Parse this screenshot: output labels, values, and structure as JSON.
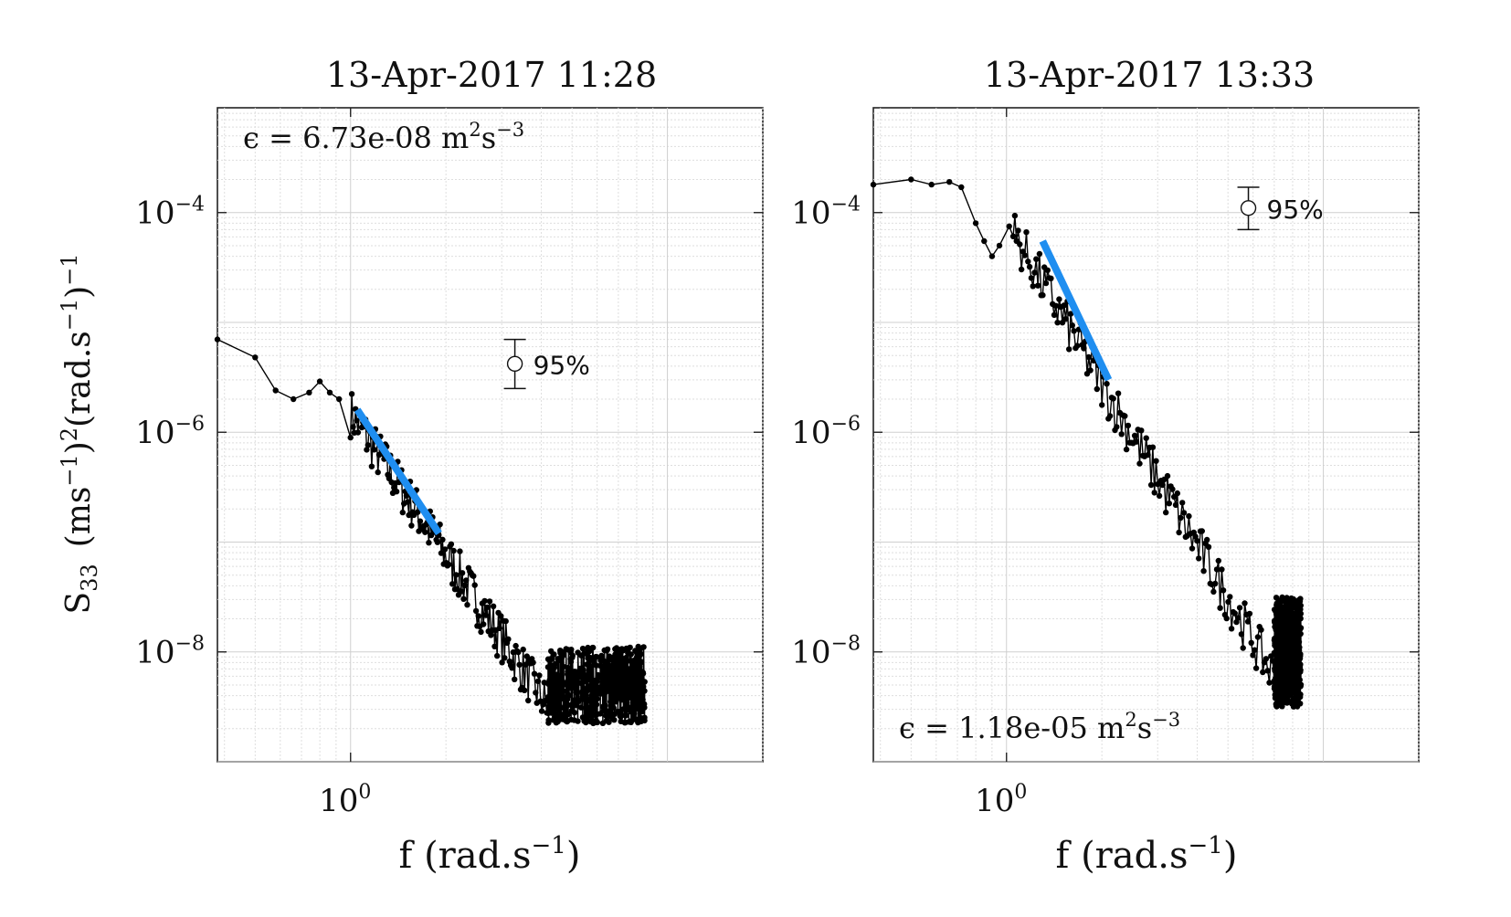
{
  "figure": {
    "ylabel": {
      "main": "S",
      "sub": "33",
      "rest": "(ms",
      "exp1": "−1",
      "rest2": ")",
      "exp2": "2",
      "rest3": "(rad.s",
      "exp3": "−1",
      "rest4": ")",
      "exp4": "−1"
    }
  },
  "chart_data": [
    {
      "type": "line",
      "title": "13-Apr-2017 11:28",
      "xlabel": {
        "main": "f (rad.s",
        "exp": "−1",
        "close": ")"
      },
      "xscale": "log",
      "yscale": "log",
      "xlim": [
        0.38,
        20
      ],
      "ylim": [
        1e-09,
        0.0009
      ],
      "grid": true,
      "xticks": [
        {
          "base": "10",
          "exp": "0",
          "value": 1
        }
      ],
      "yticks": [
        {
          "base": "10",
          "exp": "−4",
          "value": 0.0001
        },
        {
          "base": "10",
          "exp": "−6",
          "value": 1e-06
        },
        {
          "base": "10",
          "exp": "−8",
          "value": 1e-08
        }
      ],
      "annotation": {
        "text": "ϵ = 6.73e-08 m",
        "sup1": "2",
        "mid": "s",
        "sup2": "−3",
        "placement": "top-left"
      },
      "confidence": {
        "label": "95%",
        "f": 3.3,
        "center": 4.2e-06,
        "low": 2.5e-06,
        "high": 7e-06
      },
      "series": [
        {
          "role": "spectrum",
          "color": "#000000",
          "low_points": [
            [
              0.38,
              7e-06
            ],
            [
              0.5,
              4.8e-06
            ],
            [
              0.58,
              2.4e-06
            ],
            [
              0.66,
              2e-06
            ],
            [
              0.74,
              2.3e-06
            ],
            [
              0.8,
              2.9e-06
            ],
            [
              0.86,
              2.3e-06
            ],
            [
              0.92,
              2e-06
            ]
          ],
          "trend_start": [
            1.0,
            1.5e-06
          ],
          "trend_end": [
            4.2,
            4e-09
          ],
          "trend_slope": -4.3,
          "high_f_range": [
            4.2,
            8.5
          ],
          "high_f_level": 5e-09,
          "high_f_scatter": 0.35
        },
        {
          "role": "fit",
          "color": "#1f8ef0",
          "f_range": [
            1.05,
            1.9
          ],
          "values": [
            1.6e-06,
            1.2e-07
          ]
        }
      ]
    },
    {
      "type": "line",
      "title": "13-Apr-2017 13:33",
      "xlabel": {
        "main": "f (rad.s",
        "exp": "−1",
        "close": ")"
      },
      "xscale": "log",
      "yscale": "log",
      "xlim": [
        0.38,
        20
      ],
      "ylim": [
        1e-09,
        0.0009
      ],
      "grid": true,
      "xticks": [
        {
          "base": "10",
          "exp": "0",
          "value": 1
        }
      ],
      "yticks": [
        {
          "base": "10",
          "exp": "−4",
          "value": 0.0001
        },
        {
          "base": "10",
          "exp": "−6",
          "value": 1e-06
        },
        {
          "base": "10",
          "exp": "−8",
          "value": 1e-08
        }
      ],
      "annotation": {
        "text": "ϵ = 1.18e-05 m",
        "sup1": "2",
        "mid": "s",
        "sup2": "−3",
        "placement": "bottom-left"
      },
      "confidence": {
        "label": "95%",
        "f": 5.8,
        "center": 0.00011,
        "low": 7e-05,
        "high": 0.00017
      },
      "series": [
        {
          "role": "spectrum",
          "color": "#000000",
          "low_points": [
            [
              0.38,
              0.00018
            ],
            [
              0.5,
              0.0002
            ],
            [
              0.58,
              0.00018
            ],
            [
              0.66,
              0.00019
            ],
            [
              0.72,
              0.00017
            ],
            [
              0.8,
              8e-05
            ],
            [
              0.85,
              5.5e-05
            ],
            [
              0.9,
              4e-05
            ],
            [
              0.95,
              5e-05
            ],
            [
              1.02,
              7.5e-05
            ]
          ],
          "trend_start": [
            1.05,
            6.5e-05
          ],
          "trend_end": [
            7.0,
            6e-09
          ],
          "trend_slope": -4.9,
          "high_f_range": [
            7.0,
            8.5
          ],
          "high_f_level": 1e-08,
          "high_f_scatter": 0.5
        },
        {
          "role": "fit",
          "color": "#1f8ef0",
          "f_range": [
            1.3,
            2.1
          ],
          "values": [
            5.5e-05,
            3e-06
          ]
        }
      ]
    }
  ]
}
